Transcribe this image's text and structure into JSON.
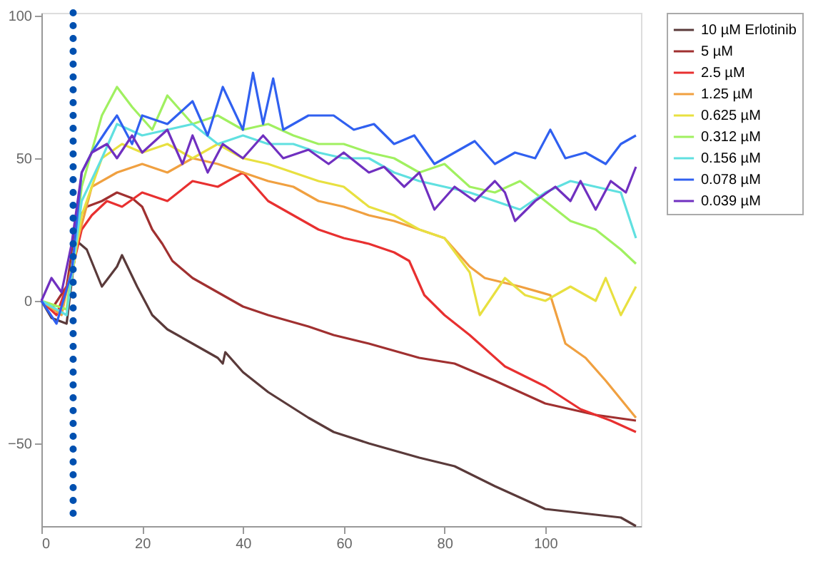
{
  "chart_data": {
    "type": "line",
    "xlim": [
      0,
      119
    ],
    "ylim": [
      -79,
      101
    ],
    "xticks": [
      0,
      20,
      40,
      60,
      80,
      100
    ],
    "yticks": [
      -50,
      0,
      50,
      100
    ],
    "grid": false,
    "legend": "top right",
    "line_style": "solid",
    "marker": "none",
    "ref_lines": [
      {
        "axis": "x",
        "value": 6.3,
        "color": "#0050b0",
        "line_style": "dotted"
      }
    ],
    "series": [
      {
        "name": "10 µM Erlotinib",
        "color": "#5a3a3a",
        "x": [
          0,
          2,
          5,
          7,
          9,
          12,
          15,
          16,
          19,
          22,
          25,
          30,
          35,
          36,
          36.5,
          40,
          45,
          53,
          58,
          65,
          75,
          82,
          90,
          100,
          110,
          115,
          118
        ],
        "values": [
          0,
          -6,
          -8,
          21,
          18,
          5,
          12,
          16,
          5,
          -5,
          -10,
          -15,
          -20,
          -22,
          -18,
          -25,
          -32,
          -41,
          -46,
          -50,
          -55,
          -58,
          -65,
          -73,
          -75,
          -76,
          -79
        ]
      },
      {
        "name": "5 µM",
        "color": "#a03030",
        "x": [
          0,
          2,
          5,
          7,
          9,
          12,
          15,
          18,
          20,
          22,
          24,
          26,
          30,
          35,
          40,
          45,
          53,
          58,
          65,
          75,
          82,
          90,
          100,
          110,
          118
        ],
        "values": [
          0,
          -3,
          5,
          28,
          33,
          35,
          38,
          36,
          33,
          25,
          20,
          14,
          8,
          3,
          -2,
          -5,
          -9,
          -12,
          -15,
          -20,
          -22,
          -28,
          -36,
          -40,
          -42
        ]
      },
      {
        "name": "2.5 µM",
        "color": "#e83030",
        "x": [
          0,
          3,
          6,
          8,
          10,
          13,
          16,
          20,
          25,
          30,
          35,
          40,
          45,
          50,
          55,
          60,
          65,
          70,
          73,
          76,
          80,
          85,
          92,
          100,
          107,
          113,
          118
        ],
        "values": [
          0,
          -5,
          10,
          25,
          30,
          35,
          33,
          38,
          35,
          42,
          40,
          45,
          35,
          30,
          25,
          22,
          20,
          17,
          14,
          2,
          -5,
          -12,
          -23,
          -30,
          -38,
          -42,
          -46
        ]
      },
      {
        "name": "1.25 µM",
        "color": "#f0a040",
        "x": [
          0,
          4,
          7,
          10,
          15,
          20,
          25,
          30,
          35,
          40,
          45,
          50,
          55,
          60,
          65,
          70,
          75,
          80,
          85,
          88,
          95,
          101,
          104,
          108,
          112,
          118
        ],
        "values": [
          0,
          -5,
          20,
          40,
          45,
          48,
          45,
          50,
          48,
          45,
          42,
          40,
          35,
          33,
          30,
          28,
          25,
          22,
          12,
          8,
          5,
          2,
          -15,
          -20,
          -28,
          -41
        ]
      },
      {
        "name": "0.625 µM",
        "color": "#e8e040",
        "x": [
          0,
          5,
          8,
          12,
          16,
          20,
          25,
          30,
          35,
          40,
          45,
          50,
          55,
          60,
          65,
          70,
          75,
          80,
          85,
          87,
          92,
          96,
          100,
          105,
          110,
          112,
          115,
          118
        ],
        "values": [
          0,
          -3,
          30,
          50,
          55,
          52,
          55,
          50,
          55,
          50,
          48,
          45,
          42,
          40,
          33,
          30,
          25,
          22,
          10,
          -5,
          8,
          2,
          0,
          5,
          0,
          8,
          -5,
          5
        ]
      },
      {
        "name": "0.312 µM",
        "color": "#a0f060",
        "x": [
          0,
          5,
          8,
          12,
          15,
          18,
          22,
          25,
          30,
          35,
          40,
          45,
          50,
          55,
          60,
          65,
          70,
          75,
          80,
          85,
          90,
          95,
          100,
          105,
          110,
          115,
          118
        ],
        "values": [
          0,
          -3,
          40,
          65,
          75,
          68,
          60,
          72,
          62,
          65,
          60,
          62,
          58,
          55,
          55,
          52,
          50,
          45,
          48,
          40,
          38,
          42,
          35,
          28,
          25,
          18,
          13
        ]
      },
      {
        "name": "0.156 µM",
        "color": "#60e0e0",
        "x": [
          0,
          5,
          8,
          12,
          15,
          20,
          25,
          30,
          35,
          40,
          45,
          50,
          55,
          60,
          65,
          70,
          75,
          80,
          85,
          90,
          95,
          100,
          105,
          110,
          115,
          118
        ],
        "values": [
          0,
          -5,
          35,
          50,
          62,
          58,
          60,
          62,
          55,
          58,
          55,
          55,
          52,
          50,
          50,
          45,
          42,
          40,
          38,
          35,
          32,
          38,
          42,
          40,
          38,
          22
        ]
      },
      {
        "name": "0.078 µM",
        "color": "#3060f0",
        "x": [
          0,
          3,
          6,
          8,
          10,
          13,
          15,
          18,
          20,
          25,
          30,
          33,
          36,
          40,
          42,
          44,
          46,
          48,
          50,
          53,
          58,
          62,
          66,
          70,
          74,
          78,
          82,
          86,
          90,
          94,
          98,
          101,
          104,
          108,
          112,
          115,
          118
        ],
        "values": [
          0,
          -8,
          10,
          45,
          52,
          60,
          65,
          55,
          65,
          62,
          70,
          58,
          75,
          60,
          80,
          62,
          78,
          60,
          62,
          65,
          65,
          60,
          62,
          55,
          58,
          48,
          52,
          56,
          48,
          52,
          50,
          60,
          50,
          52,
          48,
          55,
          58
        ]
      },
      {
        "name": "0.039 µM",
        "color": "#7030c0",
        "x": [
          0,
          2,
          4,
          6,
          8,
          10,
          13,
          15,
          18,
          20,
          25,
          28,
          30,
          33,
          36,
          40,
          44,
          48,
          53,
          57,
          60,
          65,
          68,
          72,
          75,
          78,
          82,
          86,
          90,
          92,
          94,
          98,
          102,
          105,
          107,
          110,
          113,
          116,
          118
        ],
        "values": [
          0,
          8,
          3,
          20,
          45,
          52,
          55,
          50,
          58,
          52,
          60,
          48,
          58,
          45,
          55,
          50,
          58,
          50,
          53,
          48,
          52,
          45,
          47,
          40,
          45,
          32,
          40,
          35,
          42,
          38,
          28,
          35,
          40,
          35,
          42,
          32,
          42,
          38,
          47
        ]
      }
    ]
  }
}
